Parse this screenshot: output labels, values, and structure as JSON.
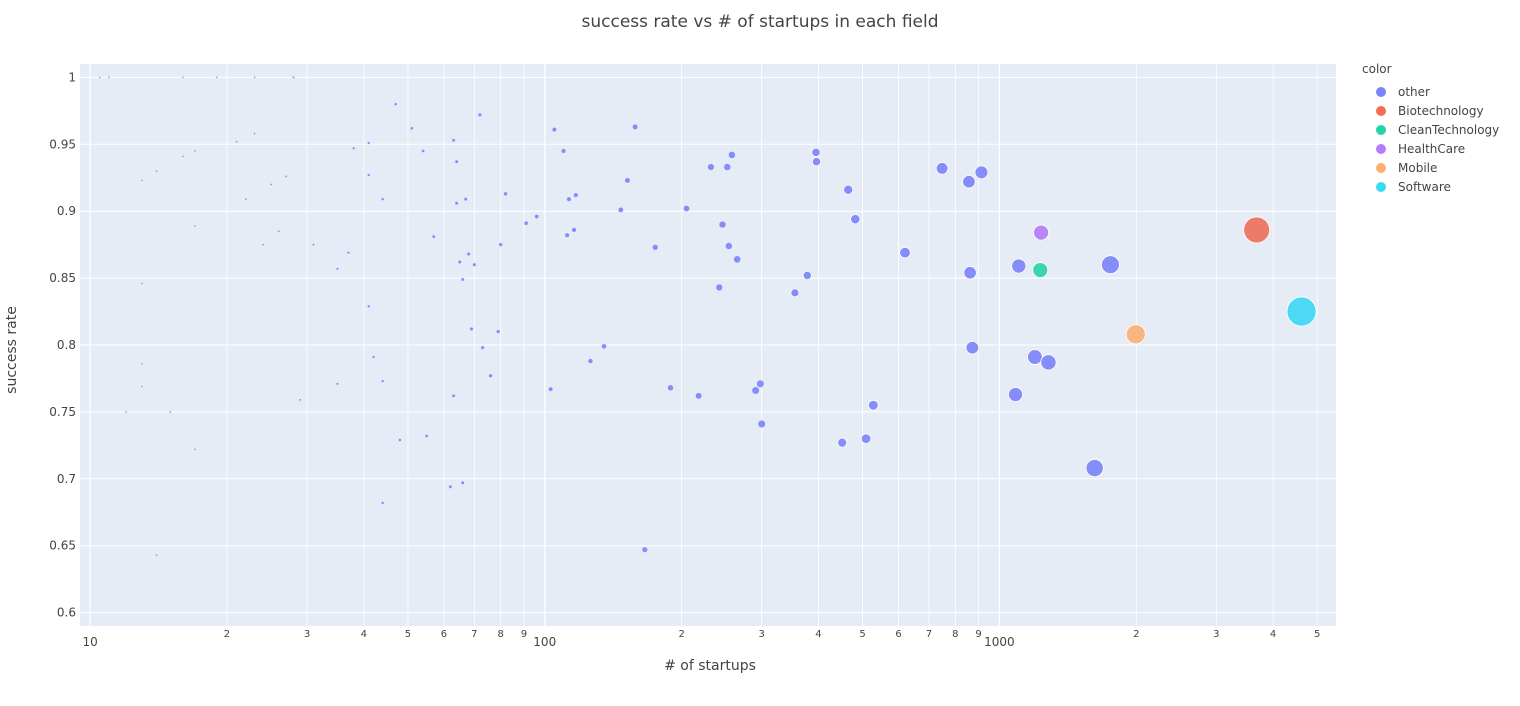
{
  "chart_data": {
    "type": "scatter",
    "title": "success rate vs # of startups in each field",
    "xlabel": "# of startups",
    "ylabel": "success rate",
    "x_scale": "log",
    "xlim": [
      9.5,
      5500
    ],
    "ylim": [
      0.59,
      1.01
    ],
    "y_ticks": [
      0.6,
      0.65,
      0.7,
      0.75,
      0.8,
      0.85,
      0.9,
      0.95,
      1
    ],
    "y_tick_labels": [
      "0.6",
      "0.65",
      "0.7",
      "0.75",
      "0.8",
      "0.85",
      "0.9",
      "0.95",
      "1"
    ],
    "x_ticks": [
      {
        "v": 10,
        "label": "10",
        "major": true
      },
      {
        "v": 20,
        "label": "2"
      },
      {
        "v": 30,
        "label": "3"
      },
      {
        "v": 40,
        "label": "4"
      },
      {
        "v": 50,
        "label": "5"
      },
      {
        "v": 60,
        "label": "6"
      },
      {
        "v": 70,
        "label": "7"
      },
      {
        "v": 80,
        "label": "8"
      },
      {
        "v": 90,
        "label": "9"
      },
      {
        "v": 100,
        "label": "100",
        "major": true
      },
      {
        "v": 200,
        "label": "2"
      },
      {
        "v": 300,
        "label": "3"
      },
      {
        "v": 400,
        "label": "4"
      },
      {
        "v": 500,
        "label": "5"
      },
      {
        "v": 600,
        "label": "6"
      },
      {
        "v": 700,
        "label": "7"
      },
      {
        "v": 800,
        "label": "8"
      },
      {
        "v": 900,
        "label": "9"
      },
      {
        "v": 1000,
        "label": "1000",
        "major": true
      },
      {
        "v": 2000,
        "label": "2"
      },
      {
        "v": 3000,
        "label": "3"
      },
      {
        "v": 4000,
        "label": "4"
      },
      {
        "v": 5000,
        "label": "5"
      }
    ],
    "grid": true,
    "legend_title": "color",
    "legend_position": "right",
    "series": [
      {
        "name": "other",
        "color": "#636efa",
        "points": [
          [
            10.5,
            1.0
          ],
          [
            11,
            1.0
          ],
          [
            16,
            1.0
          ],
          [
            19,
            1.0
          ],
          [
            23,
            1.0
          ],
          [
            28,
            1.0
          ],
          [
            16,
            0.941
          ],
          [
            17,
            0.945
          ],
          [
            21,
            0.952
          ],
          [
            23,
            0.958
          ],
          [
            25,
            0.92
          ],
          [
            22,
            0.909
          ],
          [
            24,
            0.875
          ],
          [
            26,
            0.885
          ],
          [
            17,
            0.889
          ],
          [
            14,
            0.93
          ],
          [
            13,
            0.923
          ],
          [
            27,
            0.926
          ],
          [
            38,
            0.947
          ],
          [
            41,
            0.951
          ],
          [
            41,
            0.927
          ],
          [
            44,
            0.909
          ],
          [
            47,
            0.98
          ],
          [
            51,
            0.962
          ],
          [
            54,
            0.945
          ],
          [
            63,
            0.953
          ],
          [
            64,
            0.937
          ],
          [
            64,
            0.906
          ],
          [
            67,
            0.909
          ],
          [
            72,
            0.972
          ],
          [
            37,
            0.869
          ],
          [
            35,
            0.857
          ],
          [
            31,
            0.875
          ],
          [
            41,
            0.829
          ],
          [
            42,
            0.791
          ],
          [
            44,
            0.773
          ],
          [
            35,
            0.771
          ],
          [
            29,
            0.759
          ],
          [
            48,
            0.729
          ],
          [
            55,
            0.732
          ],
          [
            44,
            0.682
          ],
          [
            13,
            0.846
          ],
          [
            13,
            0.786
          ],
          [
            13,
            0.769
          ],
          [
            14,
            0.643
          ],
          [
            17,
            0.722
          ],
          [
            15,
            0.75
          ],
          [
            12,
            0.75
          ],
          [
            65,
            0.862
          ],
          [
            66,
            0.849
          ],
          [
            68,
            0.868
          ],
          [
            70,
            0.86
          ],
          [
            69,
            0.812
          ],
          [
            79,
            0.81
          ],
          [
            73,
            0.798
          ],
          [
            76,
            0.777
          ],
          [
            63,
            0.762
          ],
          [
            66,
            0.697
          ],
          [
            62,
            0.694
          ],
          [
            57,
            0.881
          ],
          [
            82,
            0.913
          ],
          [
            80,
            0.875
          ],
          [
            91,
            0.891
          ],
          [
            96,
            0.896
          ],
          [
            105,
            0.961
          ],
          [
            110,
            0.945
          ],
          [
            113,
            0.909
          ],
          [
            117,
            0.912
          ],
          [
            112,
            0.882
          ],
          [
            116,
            0.886
          ],
          [
            103,
            0.767
          ],
          [
            126,
            0.788
          ],
          [
            135,
            0.799
          ],
          [
            147,
            0.901
          ],
          [
            152,
            0.923
          ],
          [
            158,
            0.963
          ],
          [
            175,
            0.873
          ],
          [
            166,
            0.647
          ],
          [
            189,
            0.768
          ],
          [
            205,
            0.902
          ],
          [
            218,
            0.762
          ],
          [
            232,
            0.933
          ],
          [
            242,
            0.843
          ],
          [
            246,
            0.89
          ],
          [
            252,
            0.933
          ],
          [
            254,
            0.874
          ],
          [
            258,
            0.942
          ],
          [
            265,
            0.864
          ],
          [
            291,
            0.766
          ],
          [
            298,
            0.771
          ],
          [
            300,
            0.741
          ],
          [
            355,
            0.839
          ],
          [
            378,
            0.852
          ],
          [
            395,
            0.944
          ],
          [
            396,
            0.937
          ],
          [
            451,
            0.727
          ],
          [
            465,
            0.916
          ],
          [
            482,
            0.894
          ],
          [
            509,
            0.73
          ],
          [
            528,
            0.755
          ],
          [
            620,
            0.869
          ],
          [
            748,
            0.932
          ],
          [
            857,
            0.922
          ],
          [
            862,
            0.854
          ],
          [
            872,
            0.798
          ],
          [
            913,
            0.929
          ],
          [
            1085,
            0.763
          ],
          [
            1103,
            0.859
          ],
          [
            1197,
            0.791
          ],
          [
            1282,
            0.787
          ],
          [
            1620,
            0.708
          ],
          [
            1755,
            0.86
          ]
        ]
      },
      {
        "name": "Biotechnology",
        "color": "#ef553b",
        "points": [
          [
            3680,
            0.886
          ]
        ]
      },
      {
        "name": "CleanTechnology",
        "color": "#00cc96",
        "points": [
          [
            1230,
            0.856
          ]
        ]
      },
      {
        "name": "HealthCare",
        "color": "#ab63fa",
        "points": [
          [
            1235,
            0.884
          ]
        ]
      },
      {
        "name": "Mobile",
        "color": "#ffa15a",
        "points": [
          [
            1995,
            0.808
          ]
        ]
      },
      {
        "name": "Software",
        "color": "#19d3f3",
        "points": [
          [
            4620,
            0.825
          ]
        ]
      }
    ]
  }
}
